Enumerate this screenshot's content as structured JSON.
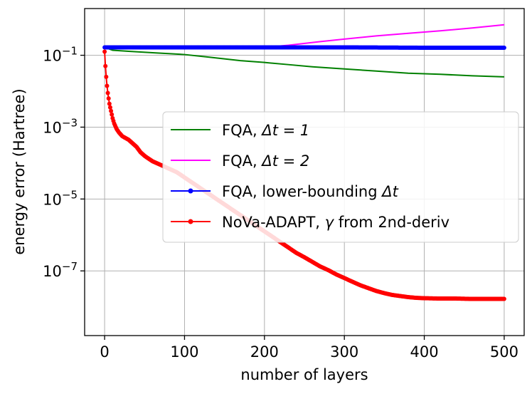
{
  "chart_data": {
    "type": "line",
    "title": "",
    "xlabel": "number of layers",
    "ylabel": "energy error (Hartree)",
    "xlim": [
      -25,
      525
    ],
    "ylim_log10": [
      -8.8,
      0.3
    ],
    "yscale": "log",
    "grid": true,
    "legend_position": "center-right",
    "x_ticks": [
      {
        "value": 0,
        "label": "0"
      },
      {
        "value": 100,
        "label": "100"
      },
      {
        "value": 200,
        "label": "200"
      },
      {
        "value": 300,
        "label": "300"
      },
      {
        "value": 400,
        "label": "400"
      },
      {
        "value": 500,
        "label": "500"
      }
    ],
    "y_ticks": [
      {
        "exp": -1,
        "base": "10",
        "sup": "−1"
      },
      {
        "exp": -3,
        "base": "10",
        "sup": "−3"
      },
      {
        "exp": -5,
        "base": "10",
        "sup": "−5"
      },
      {
        "exp": -7,
        "base": "10",
        "sup": "−7"
      }
    ],
    "series": [
      {
        "name": "FQA, Δt = 1",
        "legend_text": "FQA, ",
        "legend_math": "Δt = 1",
        "color": "#008000",
        "marker": false,
        "log10_points": [
          [
            0,
            -0.78
          ],
          [
            10,
            -0.86
          ],
          [
            30,
            -0.89
          ],
          [
            60,
            -0.93
          ],
          [
            100,
            -0.98
          ],
          [
            130,
            -1.05
          ],
          [
            150,
            -1.1
          ],
          [
            170,
            -1.15
          ],
          [
            200,
            -1.2
          ],
          [
            230,
            -1.26
          ],
          [
            260,
            -1.32
          ],
          [
            300,
            -1.38
          ],
          [
            340,
            -1.44
          ],
          [
            380,
            -1.5
          ],
          [
            420,
            -1.53
          ],
          [
            460,
            -1.57
          ],
          [
            500,
            -1.6
          ]
        ]
      },
      {
        "name": "FQA, Δt = 2",
        "legend_text": "FQA, ",
        "legend_math": "Δt = 2",
        "color": "#ff00ff",
        "marker": false,
        "log10_points": [
          [
            0,
            -0.78
          ],
          [
            100,
            -0.78
          ],
          [
            200,
            -0.78
          ],
          [
            230,
            -0.72
          ],
          [
            270,
            -0.62
          ],
          [
            300,
            -0.55
          ],
          [
            340,
            -0.46
          ],
          [
            380,
            -0.39
          ],
          [
            420,
            -0.32
          ],
          [
            460,
            -0.24
          ],
          [
            500,
            -0.15
          ]
        ]
      },
      {
        "name": "FQA, lower-bounding Δt",
        "legend_text": "FQA, lower-bounding ",
        "legend_math": "Δt",
        "color": "#0000ff",
        "marker": true,
        "log10_points": [
          [
            0,
            -0.78
          ],
          [
            100,
            -0.78
          ],
          [
            200,
            -0.78
          ],
          [
            300,
            -0.78
          ],
          [
            400,
            -0.79
          ],
          [
            500,
            -0.79
          ]
        ]
      },
      {
        "name": "NoVa-ADAPT, γ from 2nd-deriv",
        "legend_text": "NoVa-ADAPT, ",
        "legend_math": "γ",
        "legend_suffix": " from 2nd-deriv",
        "color": "#ff0000",
        "marker": true,
        "log10_points": [
          [
            0,
            -0.9
          ],
          [
            1,
            -1.3
          ],
          [
            2,
            -1.6
          ],
          [
            3,
            -1.85
          ],
          [
            4,
            -2.05
          ],
          [
            5,
            -2.2
          ],
          [
            6,
            -2.35
          ],
          [
            8,
            -2.55
          ],
          [
            10,
            -2.75
          ],
          [
            12,
            -2.9
          ],
          [
            15,
            -3.05
          ],
          [
            18,
            -3.15
          ],
          [
            22,
            -3.25
          ],
          [
            26,
            -3.3
          ],
          [
            30,
            -3.35
          ],
          [
            35,
            -3.45
          ],
          [
            40,
            -3.55
          ],
          [
            45,
            -3.7
          ],
          [
            50,
            -3.8
          ],
          [
            60,
            -3.95
          ],
          [
            70,
            -4.05
          ],
          [
            80,
            -4.15
          ],
          [
            90,
            -4.25
          ],
          [
            100,
            -4.4
          ],
          [
            110,
            -4.55
          ],
          [
            120,
            -4.7
          ],
          [
            130,
            -4.85
          ],
          [
            140,
            -5.0
          ],
          [
            150,
            -5.15
          ],
          [
            160,
            -5.3
          ],
          [
            170,
            -5.45
          ],
          [
            180,
            -5.6
          ],
          [
            190,
            -5.75
          ],
          [
            200,
            -5.9
          ],
          [
            210,
            -6.05
          ],
          [
            220,
            -6.2
          ],
          [
            230,
            -6.35
          ],
          [
            240,
            -6.5
          ],
          [
            250,
            -6.62
          ],
          [
            260,
            -6.75
          ],
          [
            270,
            -6.88
          ],
          [
            280,
            -6.98
          ],
          [
            290,
            -7.1
          ],
          [
            300,
            -7.2
          ],
          [
            310,
            -7.3
          ],
          [
            320,
            -7.4
          ],
          [
            330,
            -7.48
          ],
          [
            340,
            -7.56
          ],
          [
            350,
            -7.62
          ],
          [
            360,
            -7.67
          ],
          [
            370,
            -7.7
          ],
          [
            380,
            -7.73
          ],
          [
            390,
            -7.75
          ],
          [
            400,
            -7.76
          ],
          [
            420,
            -7.77
          ],
          [
            440,
            -7.77
          ],
          [
            460,
            -7.78
          ],
          [
            480,
            -7.78
          ],
          [
            500,
            -7.78
          ]
        ]
      }
    ]
  }
}
